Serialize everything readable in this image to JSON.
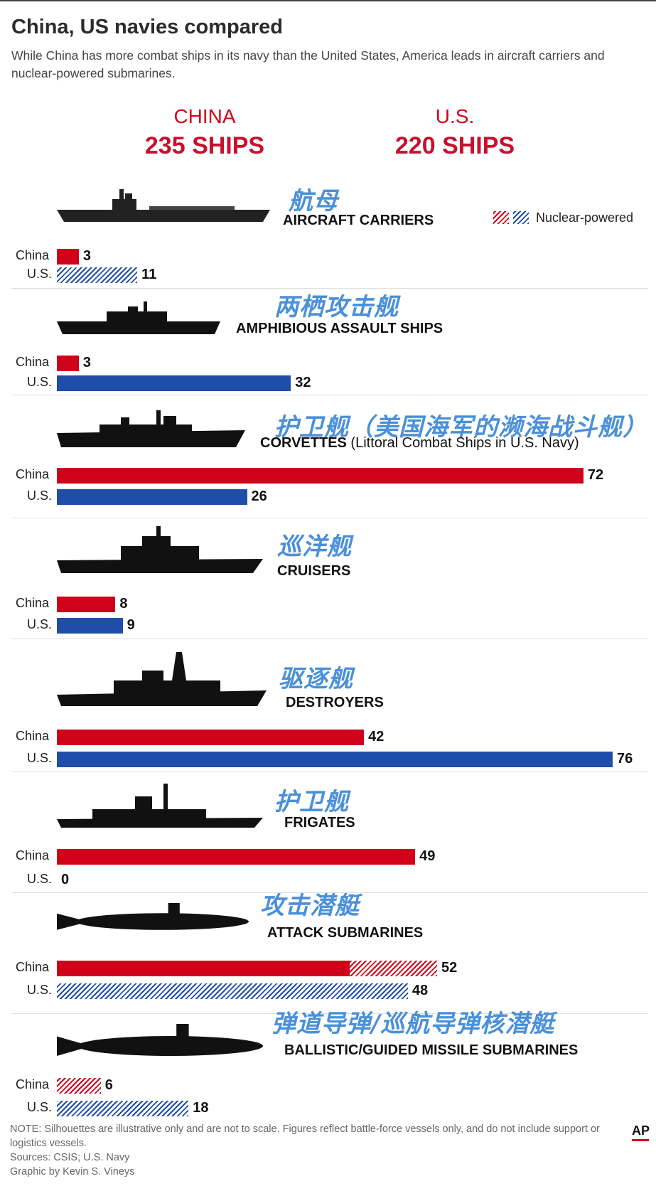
{
  "title": "China, US navies compared",
  "subtitle": "While China has more combat ships in its navy than the United States, America leads in aircraft carriers and nuclear-powered submarines.",
  "totals": {
    "china_label": "CHINA",
    "china_total": "235 SHIPS",
    "us_label": "U.S.",
    "us_total": "220 SHIPS"
  },
  "legend": {
    "label": "Nuclear-powered"
  },
  "colors": {
    "china": "#d0021b",
    "us": "#1f4ea8",
    "chinese_caption": "#4a90d9",
    "headline": "#c8102e"
  },
  "row_labels": {
    "china": "China",
    "us": "U.S."
  },
  "chart_data": {
    "type": "bar",
    "orientation": "horizontal",
    "xlim": [
      0,
      76
    ],
    "categories": [
      {
        "zh": "航母",
        "en": "AIRCRAFT CARRIERS",
        "en_note": "",
        "silhouette": "carrier-silhouette-icon",
        "china": 3,
        "us": 11,
        "china_nuclear": 0,
        "us_nuclear": 11
      },
      {
        "zh": "两栖攻击舰",
        "en": "AMPHIBIOUS ASSAULT SHIPS",
        "en_note": "",
        "silhouette": "amphibious-ship-silhouette-icon",
        "china": 3,
        "us": 32,
        "china_nuclear": 0,
        "us_nuclear": 0
      },
      {
        "zh": "护卫舰（美国海军的濒海战斗舰）",
        "en": "CORVETTES",
        "en_note": " (Littoral Combat Ships in U.S. Navy)",
        "silhouette": "corvette-silhouette-icon",
        "china": 72,
        "us": 26,
        "china_nuclear": 0,
        "us_nuclear": 0
      },
      {
        "zh": "巡洋舰",
        "en": "CRUISERS",
        "en_note": "",
        "silhouette": "cruiser-silhouette-icon",
        "china": 8,
        "us": 9,
        "china_nuclear": 0,
        "us_nuclear": 0
      },
      {
        "zh": "驱逐舰",
        "en": "DESTROYERS",
        "en_note": "",
        "silhouette": "destroyer-silhouette-icon",
        "china": 42,
        "us": 76,
        "china_nuclear": 0,
        "us_nuclear": 0
      },
      {
        "zh": "护卫舰",
        "en": "FRIGATES",
        "en_note": "",
        "silhouette": "frigate-silhouette-icon",
        "china": 49,
        "us": 0,
        "china_nuclear": 0,
        "us_nuclear": 0
      },
      {
        "zh": "攻击潜艇",
        "en": "ATTACK SUBMARINES",
        "en_note": "",
        "silhouette": "attack-submarine-silhouette-icon",
        "china": 52,
        "us": 48,
        "china_nuclear": 12,
        "us_nuclear": 48
      },
      {
        "zh": "弹道导弹/巡航导弹核潜艇",
        "en": "BALLISTIC/GUIDED MISSILE SUBMARINES",
        "en_note": "",
        "silhouette": "missile-submarine-silhouette-icon",
        "china": 6,
        "us": 18,
        "china_nuclear": 6,
        "us_nuclear": 18
      }
    ]
  },
  "footnote": {
    "note": "NOTE: Silhouettes are illustrative only and are not to scale. Figures reflect battle-force vessels only, and do not include support or logistics vessels.",
    "sources": "Sources: CSIS; U.S. Navy",
    "credit": "Graphic by Kevin S. Vineys"
  },
  "logo": "AP"
}
